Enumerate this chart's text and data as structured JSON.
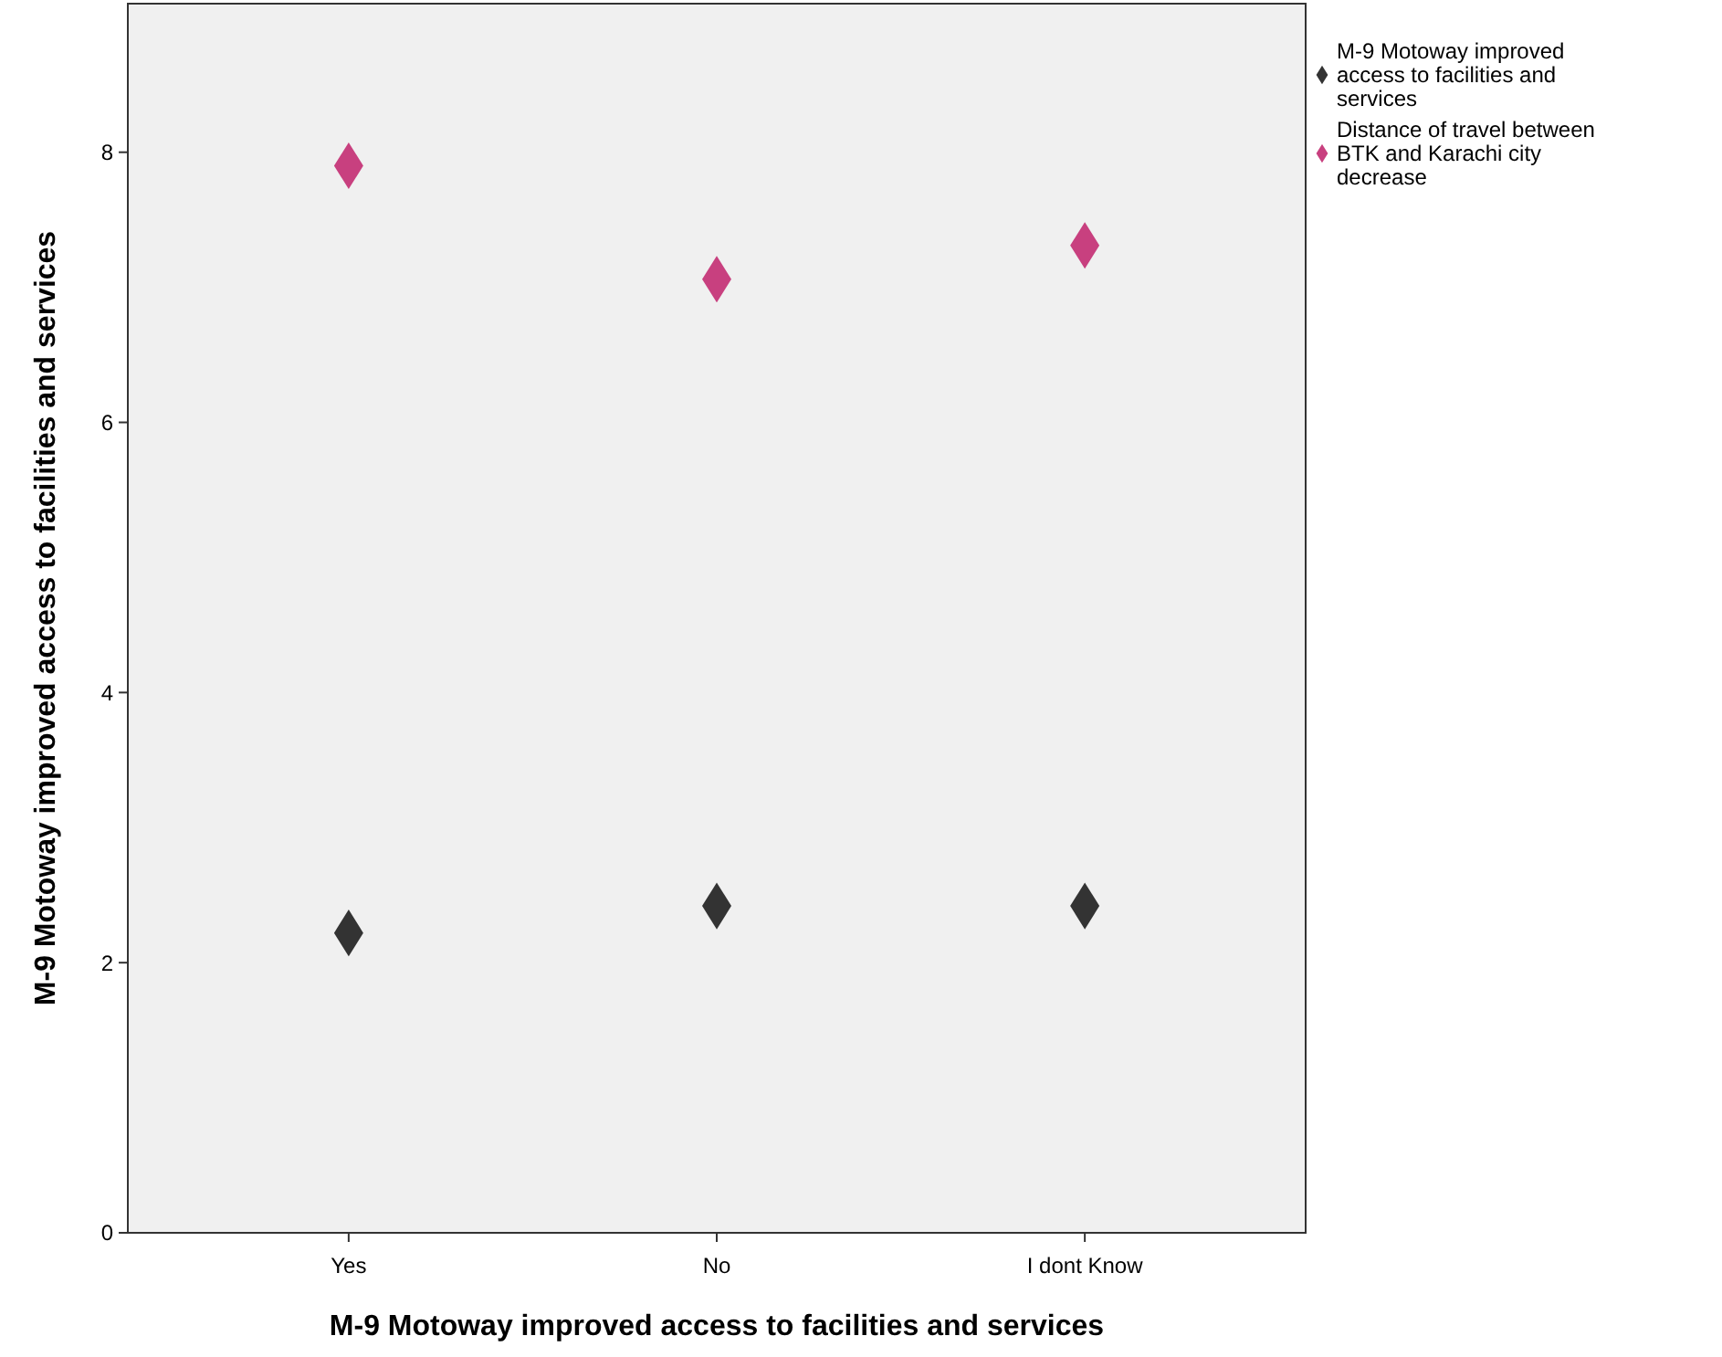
{
  "chart_data": {
    "type": "scatter",
    "xlabel": "M-9 Motoway improved access to facilities and services",
    "ylabel": "M-9 Motoway improved access to facilities and services",
    "categories": [
      "Yes",
      "No",
      "I dont Know"
    ],
    "ylim": [
      0,
      9.1
    ],
    "yticks": [
      0,
      2,
      4,
      6,
      8
    ],
    "marker": "diamond",
    "legend": "top right",
    "grid": false,
    "series": [
      {
        "name": "M-9 Motoway improved access to facilities and services",
        "color": "#333333",
        "values": [
          2.22,
          2.42,
          2.42
        ]
      },
      {
        "name": "Distance of travel between BTK and Karachi city decrease",
        "color": "#c8407f",
        "values": [
          7.9,
          7.06,
          7.31
        ]
      }
    ]
  }
}
